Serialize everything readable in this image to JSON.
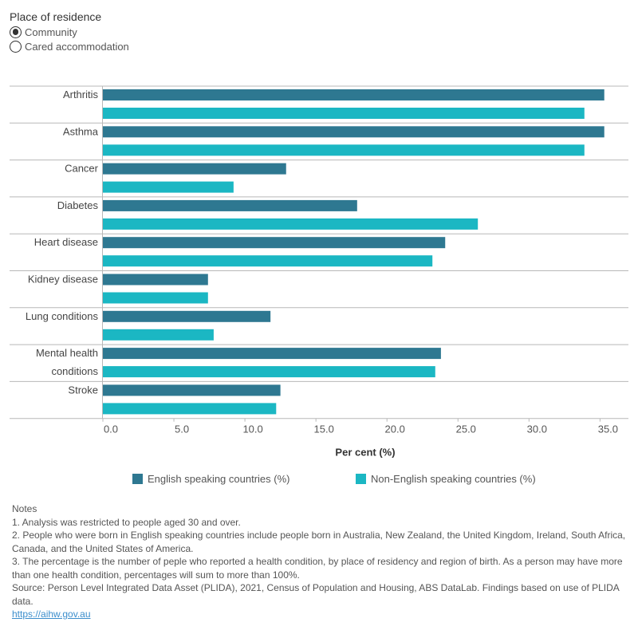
{
  "filter": {
    "title": "Place of residence",
    "options": [
      {
        "label": "Community",
        "checked": true
      },
      {
        "label": "Cared accommodation",
        "checked": false
      }
    ]
  },
  "chart_data": {
    "type": "bar",
    "orientation": "horizontal",
    "categories": [
      "Arthritis",
      "Asthma",
      "Cancer",
      "Diabetes",
      "Heart disease",
      "Kidney disease",
      "Lung conditions",
      "Mental health conditions",
      "Stroke"
    ],
    "series": [
      {
        "name": "English speaking countries (%)",
        "color": "#2e7891",
        "values": [
          35.3,
          35.3,
          12.9,
          17.9,
          24.1,
          7.4,
          11.8,
          23.8,
          12.5
        ]
      },
      {
        "name": "Non-English speaking countries (%)",
        "color": "#1bb7c3",
        "values": [
          33.9,
          33.9,
          9.2,
          26.4,
          23.2,
          7.4,
          7.8,
          23.4,
          12.2
        ]
      }
    ],
    "xlabel": "Per cent (%)",
    "xlim": [
      0,
      37
    ],
    "xticks": [
      "0.0",
      "5.0",
      "10.0",
      "15.0",
      "20.0",
      "25.0",
      "30.0",
      "35.0"
    ],
    "xtick_values": [
      0,
      5,
      10,
      15,
      20,
      25,
      30,
      35
    ],
    "grid": false,
    "legend_position": "bottom"
  },
  "notes": {
    "heading": "Notes",
    "lines": [
      "1. Analysis was restricted to people aged 30 and over.",
      "2. People who were born in English speaking countries include people born in Australia, New Zealand, the United Kingdom, Ireland, South Africa, Canada, and the United States of America.",
      "3. The percentage is the number of peple who reported a health condition, by place of residency and region of birth. As a person may have more than one health condition, percentages will sum to more than 100%.",
      "Source: Person Level Integrated Data Asset (PLIDA), 2021, Census of Population and Housing, ABS DataLab. Findings based on use of PLIDA data."
    ],
    "link": "https://aihw.gov.au"
  }
}
